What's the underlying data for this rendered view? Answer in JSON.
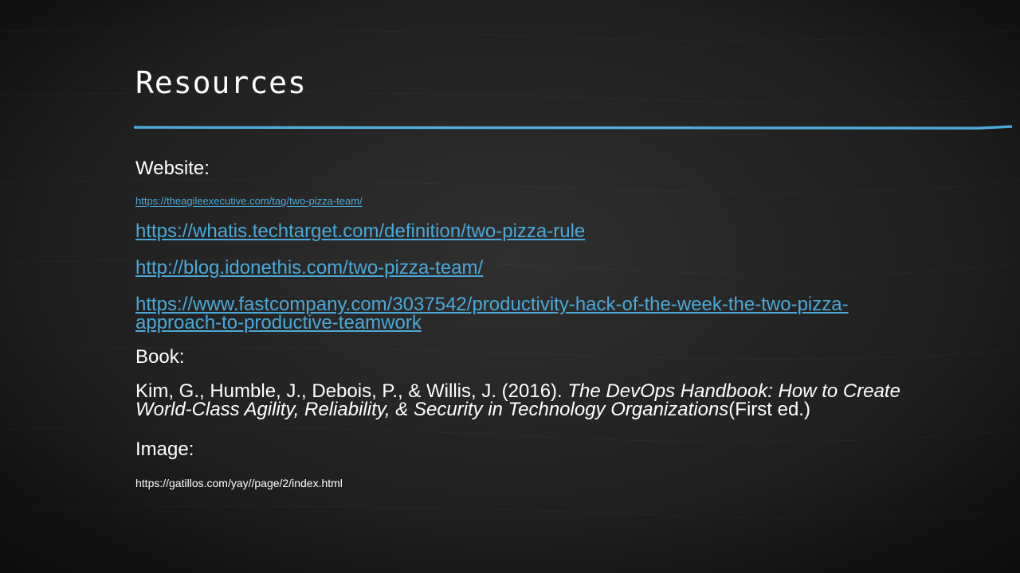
{
  "slide": {
    "title": "Resources",
    "accent_color": "#4aa9d8",
    "background_color": "#1c1c1c"
  },
  "website": {
    "label": "Website:",
    "links": [
      "https://theagileexecutive.com/tag/two-pizza-team/",
      "https://whatis.techtarget.com/definition/two-pizza-rule",
      "http://blog.idonethis.com/two-pizza-team/",
      "https://www.fastcompany.com/3037542/productivity-hack-of-the-week-the-two-pizza-approach-to-productive-teamwork"
    ]
  },
  "book": {
    "label": "Book:",
    "authors": "Kim, G., Humble, J., Debois, P., & Willis, J. (2016). ",
    "title": "The DevOps Handbook: How to Create World-Class Agility, Reliability, & Security in Technology Organizations",
    "edition": "(First ed.)"
  },
  "image": {
    "label": "Image:",
    "source": "https://gatillos.com/yay//page/2/index.html"
  }
}
